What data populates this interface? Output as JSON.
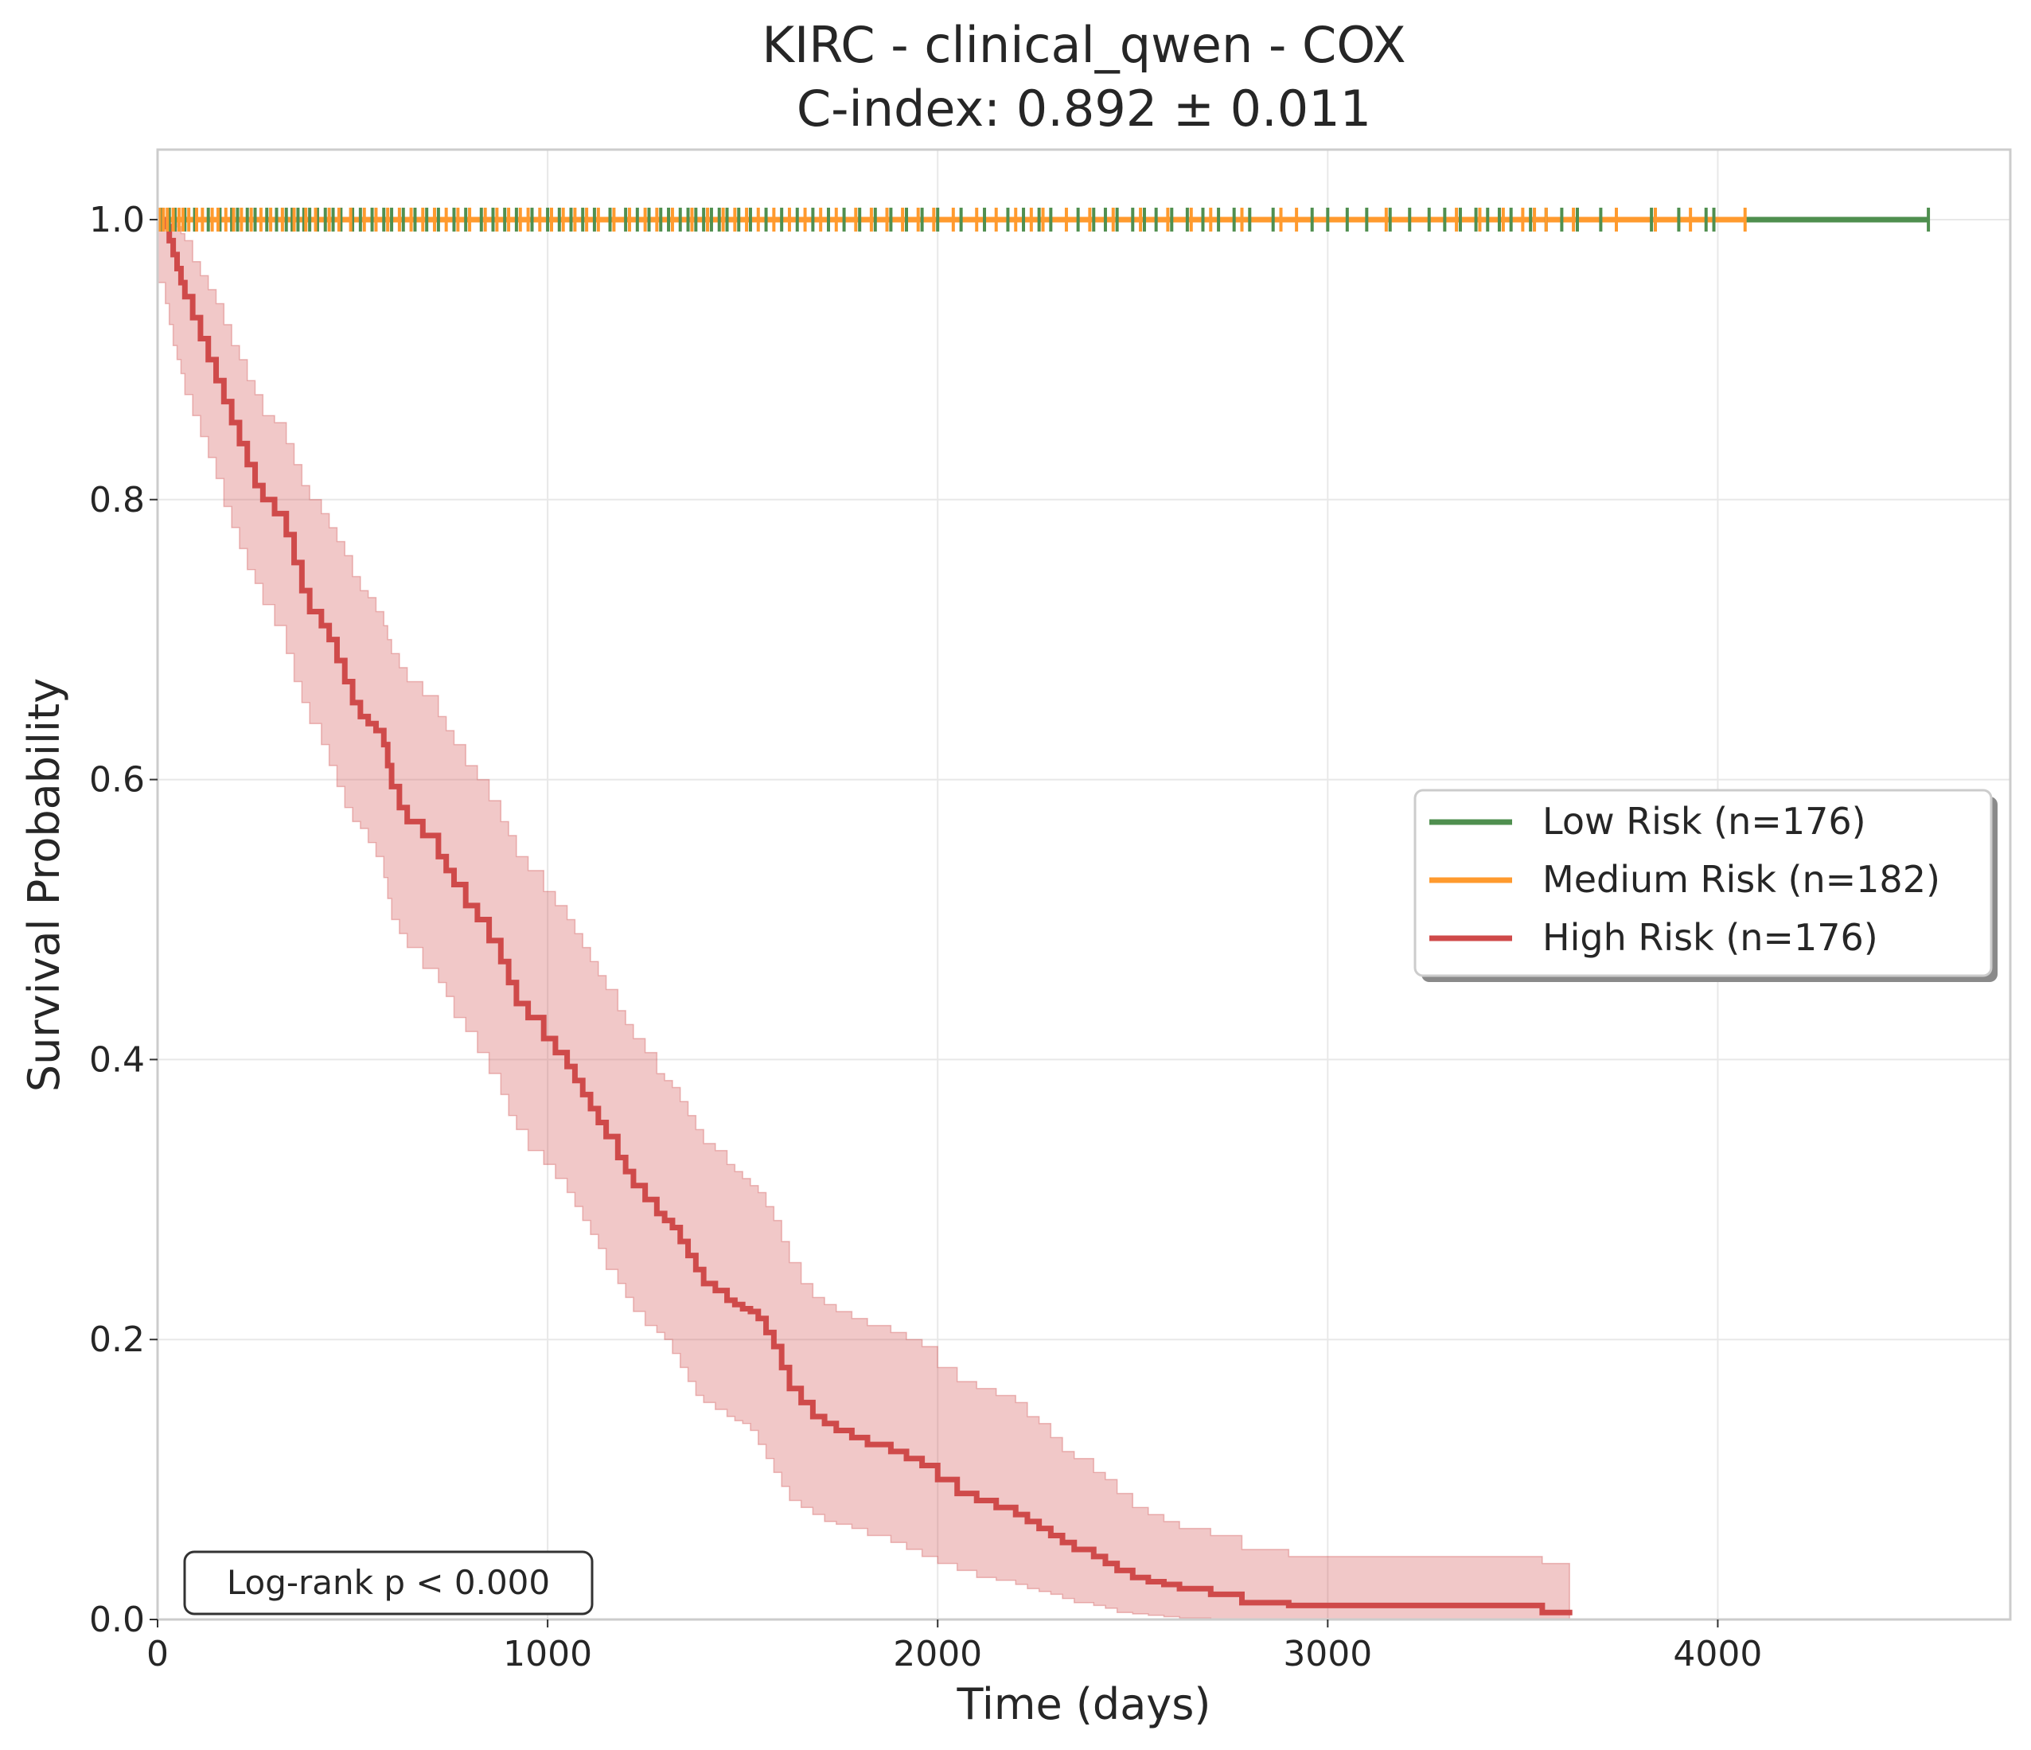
{
  "chart_data": {
    "type": "line",
    "title": "KIRC - clinical_qwen - COX",
    "subtitle": "C-index: 0.892 ± 0.011",
    "xlabel": "Time (days)",
    "ylabel": "Survival Probability",
    "xlim": [
      0,
      4750
    ],
    "ylim": [
      0,
      1.05
    ],
    "xticks": [
      0,
      1000,
      2000,
      3000,
      4000
    ],
    "yticks": [
      0.0,
      0.2,
      0.4,
      0.6,
      0.8,
      1.0
    ],
    "xtick_labels": [
      "0",
      "1000",
      "2000",
      "3000",
      "4000"
    ],
    "ytick_labels": [
      "0.0",
      "0.2",
      "0.4",
      "0.6",
      "0.8",
      "1.0"
    ],
    "grid": true,
    "legend_position": "right",
    "annotation": "Log-rank p < 0.000",
    "series": [
      {
        "name": "Low Risk (n=176)",
        "color": "#4f8f4f",
        "x": [
          0,
          4540
        ],
        "y": [
          1.0,
          1.0
        ],
        "censor_times": [
          10,
          30,
          45,
          70,
          95,
          130,
          160,
          190,
          205,
          230,
          250,
          280,
          305,
          330,
          345,
          360,
          375,
          390,
          410,
          430,
          450,
          470,
          500,
          520,
          550,
          580,
          600,
          630,
          660,
          690,
          720,
          760,
          790,
          830,
          860,
          890,
          920,
          960,
          1000,
          1030,
          1060,
          1090,
          1120,
          1160,
          1200,
          1230,
          1260,
          1290,
          1310,
          1340,
          1360,
          1380,
          1400,
          1420,
          1440,
          1460,
          1490,
          1520,
          1560,
          1600,
          1640,
          1680,
          1720,
          1760,
          1800,
          1840,
          1880,
          1920,
          1960,
          2000,
          2060,
          2120,
          2180,
          2220,
          2260,
          2290,
          2360,
          2400,
          2430,
          2460,
          2500,
          2530,
          2560,
          2600,
          2640,
          2680,
          2720,
          2760,
          2800,
          2860,
          2960,
          3000,
          3050,
          3100,
          3160,
          3210,
          3260,
          3300,
          3340,
          3380,
          3410,
          3440,
          3470,
          3520,
          3560,
          3600,
          3640,
          3700,
          3830,
          3900,
          3970,
          3990,
          4540
        ]
      },
      {
        "name": "Medium Risk (n=182)",
        "color": "#ff9a2e",
        "x": [
          0,
          4070
        ],
        "y": [
          1.0,
          1.0
        ],
        "censor_times": [
          5,
          15,
          25,
          40,
          55,
          65,
          80,
          100,
          115,
          140,
          155,
          175,
          195,
          215,
          240,
          265,
          290,
          320,
          350,
          380,
          405,
          440,
          465,
          495,
          530,
          560,
          590,
          620,
          650,
          680,
          710,
          740,
          770,
          800,
          840,
          870,
          900,
          930,
          950,
          980,
          1010,
          1040,
          1070,
          1100,
          1130,
          1170,
          1210,
          1250,
          1280,
          1320,
          1370,
          1410,
          1450,
          1480,
          1510,
          1540,
          1580,
          1620,
          1660,
          1700,
          1740,
          1790,
          1830,
          1870,
          1910,
          1950,
          1990,
          2040,
          2100,
          2150,
          2200,
          2240,
          2270,
          2330,
          2390,
          2450,
          2520,
          2590,
          2650,
          2700,
          2780,
          2880,
          2920,
          3150,
          3330,
          3390,
          3450,
          3500,
          3530,
          3560,
          3630,
          3740,
          3840,
          3930,
          4070
        ]
      },
      {
        "name": "High Risk (n=176)",
        "color": "#cf4a4a",
        "x": [
          0,
          20,
          30,
          40,
          50,
          60,
          70,
          90,
          110,
          130,
          150,
          170,
          190,
          210,
          230,
          250,
          270,
          300,
          330,
          350,
          370,
          390,
          420,
          440,
          460,
          480,
          500,
          520,
          540,
          560,
          580,
          590,
          600,
          620,
          640,
          680,
          720,
          740,
          760,
          790,
          820,
          850,
          880,
          900,
          920,
          950,
          990,
          1020,
          1050,
          1070,
          1090,
          1110,
          1130,
          1150,
          1180,
          1200,
          1220,
          1250,
          1280,
          1300,
          1320,
          1340,
          1360,
          1380,
          1400,
          1430,
          1460,
          1480,
          1500,
          1520,
          1540,
          1560,
          1580,
          1600,
          1620,
          1650,
          1680,
          1710,
          1740,
          1780,
          1820,
          1880,
          1920,
          1960,
          2000,
          2050,
          2100,
          2150,
          2200,
          2230,
          2260,
          2290,
          2320,
          2350,
          2400,
          2430,
          2460,
          2500,
          2540,
          2580,
          2620,
          2700,
          2780,
          2900,
          3200,
          3550,
          3620
        ],
        "y": [
          1.0,
          0.995,
          0.985,
          0.975,
          0.965,
          0.955,
          0.945,
          0.93,
          0.915,
          0.9,
          0.885,
          0.87,
          0.855,
          0.84,
          0.825,
          0.81,
          0.8,
          0.79,
          0.775,
          0.755,
          0.735,
          0.72,
          0.71,
          0.7,
          0.685,
          0.67,
          0.655,
          0.645,
          0.64,
          0.635,
          0.625,
          0.61,
          0.595,
          0.58,
          0.57,
          0.56,
          0.545,
          0.535,
          0.525,
          0.51,
          0.5,
          0.485,
          0.47,
          0.455,
          0.44,
          0.43,
          0.415,
          0.405,
          0.395,
          0.385,
          0.375,
          0.365,
          0.355,
          0.345,
          0.33,
          0.32,
          0.31,
          0.3,
          0.29,
          0.285,
          0.28,
          0.27,
          0.26,
          0.25,
          0.24,
          0.235,
          0.228,
          0.225,
          0.222,
          0.22,
          0.215,
          0.205,
          0.195,
          0.18,
          0.165,
          0.155,
          0.145,
          0.14,
          0.135,
          0.13,
          0.125,
          0.12,
          0.115,
          0.11,
          0.1,
          0.09,
          0.085,
          0.08,
          0.075,
          0.07,
          0.065,
          0.06,
          0.055,
          0.05,
          0.045,
          0.04,
          0.035,
          0.03,
          0.027,
          0.025,
          0.022,
          0.018,
          0.012,
          0.01,
          0.01,
          0.005,
          0.003
        ],
        "ci_upper": [
          1.0,
          1.0,
          1.0,
          1.0,
          0.995,
          0.99,
          0.985,
          0.97,
          0.96,
          0.95,
          0.94,
          0.925,
          0.91,
          0.9,
          0.885,
          0.875,
          0.86,
          0.855,
          0.84,
          0.825,
          0.81,
          0.8,
          0.79,
          0.78,
          0.77,
          0.76,
          0.745,
          0.735,
          0.73,
          0.72,
          0.71,
          0.7,
          0.69,
          0.68,
          0.67,
          0.66,
          0.645,
          0.635,
          0.625,
          0.61,
          0.6,
          0.585,
          0.57,
          0.56,
          0.545,
          0.535,
          0.52,
          0.51,
          0.5,
          0.49,
          0.48,
          0.47,
          0.46,
          0.45,
          0.435,
          0.425,
          0.415,
          0.405,
          0.39,
          0.385,
          0.38,
          0.37,
          0.36,
          0.35,
          0.34,
          0.335,
          0.325,
          0.32,
          0.315,
          0.31,
          0.305,
          0.295,
          0.285,
          0.27,
          0.255,
          0.24,
          0.23,
          0.225,
          0.22,
          0.215,
          0.21,
          0.205,
          0.2,
          0.195,
          0.18,
          0.17,
          0.165,
          0.16,
          0.155,
          0.145,
          0.14,
          0.13,
          0.12,
          0.115,
          0.105,
          0.1,
          0.09,
          0.08,
          0.075,
          0.07,
          0.065,
          0.06,
          0.05,
          0.045,
          0.045,
          0.04,
          0.038
        ],
        "ci_lower": [
          0.97,
          0.955,
          0.94,
          0.925,
          0.91,
          0.9,
          0.89,
          0.875,
          0.86,
          0.845,
          0.83,
          0.815,
          0.795,
          0.78,
          0.765,
          0.75,
          0.74,
          0.725,
          0.71,
          0.69,
          0.67,
          0.655,
          0.64,
          0.625,
          0.61,
          0.595,
          0.58,
          0.57,
          0.565,
          0.555,
          0.545,
          0.53,
          0.515,
          0.5,
          0.49,
          0.48,
          0.465,
          0.455,
          0.445,
          0.43,
          0.42,
          0.405,
          0.39,
          0.375,
          0.36,
          0.35,
          0.335,
          0.325,
          0.315,
          0.305,
          0.295,
          0.285,
          0.275,
          0.265,
          0.25,
          0.24,
          0.23,
          0.22,
          0.21,
          0.205,
          0.2,
          0.19,
          0.18,
          0.17,
          0.16,
          0.155,
          0.15,
          0.145,
          0.142,
          0.14,
          0.135,
          0.125,
          0.115,
          0.105,
          0.095,
          0.085,
          0.08,
          0.075,
          0.07,
          0.068,
          0.065,
          0.06,
          0.055,
          0.05,
          0.045,
          0.04,
          0.035,
          0.03,
          0.028,
          0.025,
          0.022,
          0.02,
          0.018,
          0.015,
          0.012,
          0.01,
          0.008,
          0.005,
          0.004,
          0.003,
          0.002,
          0.001,
          0.0,
          0.0,
          0.0,
          0.0,
          0.0
        ]
      }
    ]
  }
}
